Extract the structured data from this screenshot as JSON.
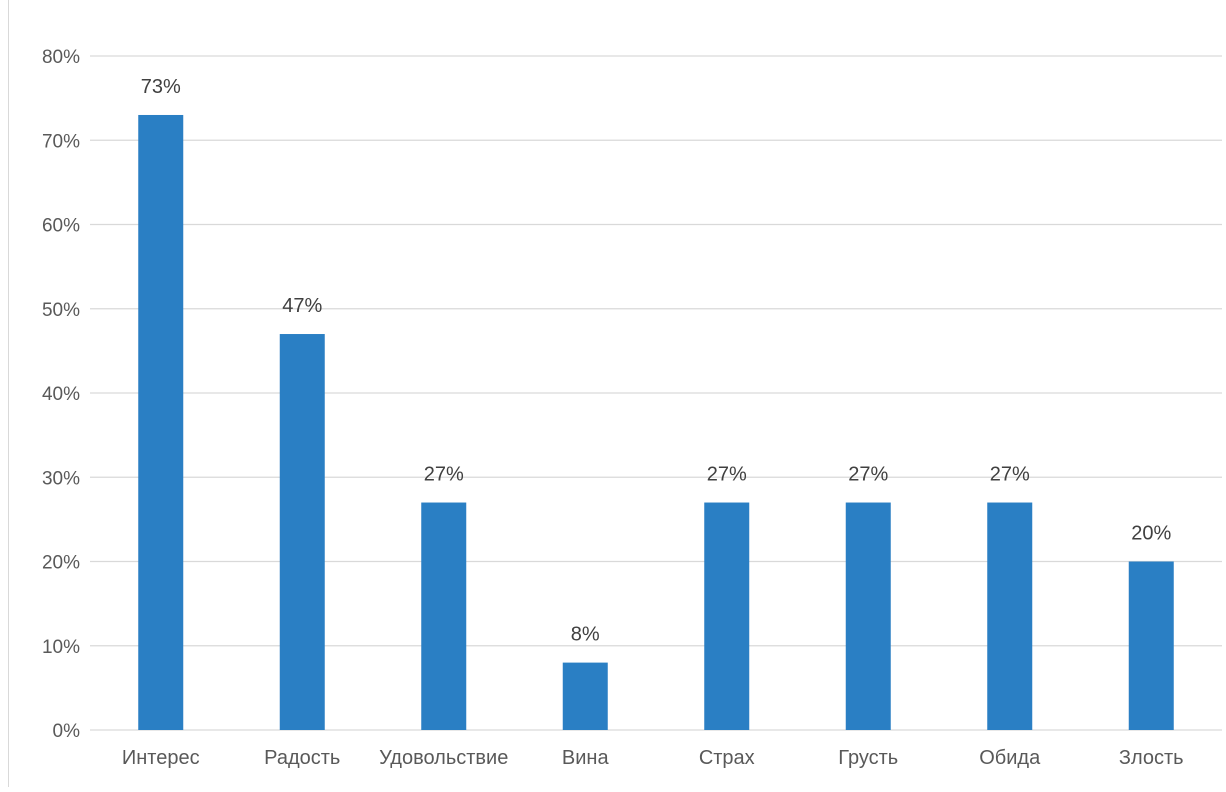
{
  "chart_data": {
    "type": "bar",
    "categories": [
      "Интерес",
      "Радость",
      "Удовольствие",
      "Вина",
      "Страх",
      "Грусть",
      "Обида",
      "Злость"
    ],
    "values": [
      73,
      47,
      27,
      8,
      27,
      27,
      27,
      20
    ],
    "data_labels": [
      "73%",
      "47%",
      "27%",
      "8%",
      "27%",
      "27%",
      "27%",
      "20%"
    ],
    "ylim": [
      0,
      80
    ],
    "ytick_values": [
      0,
      10,
      20,
      30,
      40,
      50,
      60,
      70,
      80
    ],
    "ytick_labels": [
      "0%",
      "10%",
      "20%",
      "30%",
      "40%",
      "50%",
      "60%",
      "70%",
      "80%"
    ],
    "title": "",
    "xlabel": "",
    "ylabel": "",
    "grid": "horizontal",
    "legend": "none",
    "bar_color": "#2a7fc4",
    "grid_color": "#d9d9d9"
  }
}
